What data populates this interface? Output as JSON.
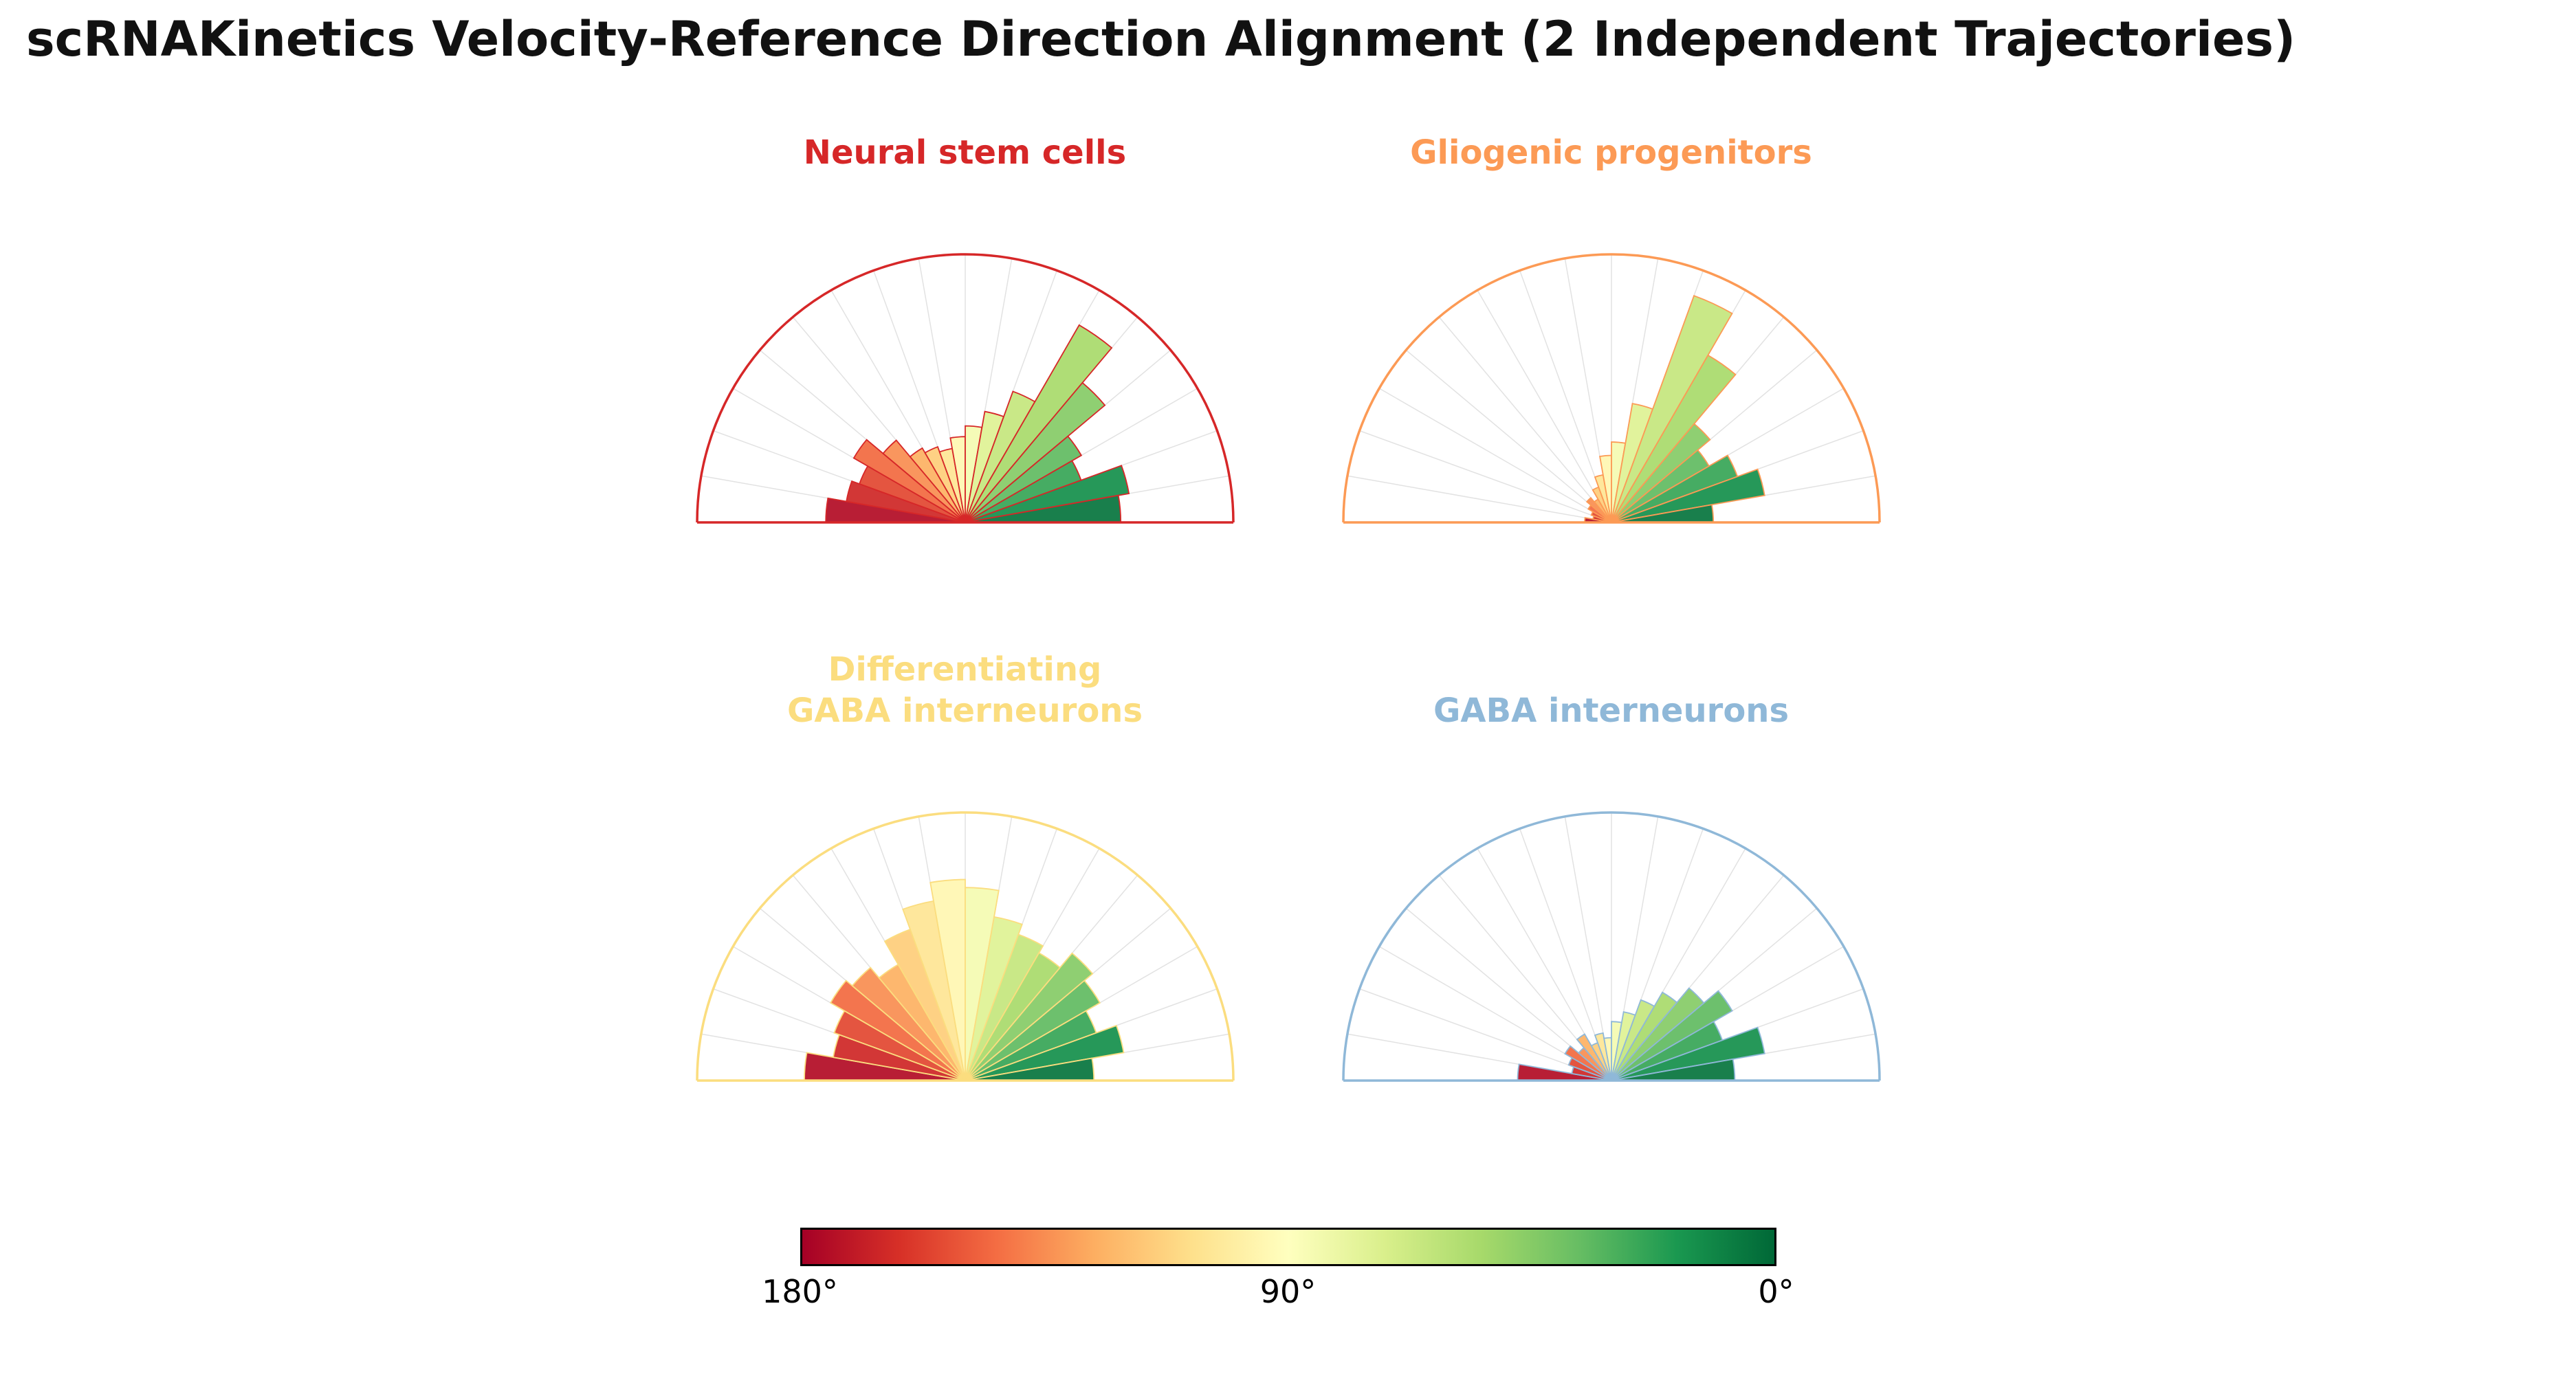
{
  "figure": {
    "title": "scRNAKinetics Velocity-Reference Direction Alignment (2 Independent Trajectories)"
  },
  "colorbar": {
    "labels": [
      "180°",
      "90°",
      "0°"
    ],
    "colormap_name": "RdYlGn",
    "colormap_stops": [
      "#a50026",
      "#d73027",
      "#f46d43",
      "#fdae61",
      "#fee08b",
      "#ffffbf",
      "#d9ef8b",
      "#a6d96a",
      "#66bd63",
      "#1a9850",
      "#006837"
    ]
  },
  "chart_data": {
    "type": "bar",
    "subtype": "polar half-rose histogram (velocity vs reference direction angle), 18 bins of 10 degrees spanning 0-180 degrees, one semicircle per cell type",
    "angle_bins_deg": {
      "start": 180,
      "end": 0,
      "bin_width": 10,
      "order": "values listed from the 170-180 degree bin (left) to the 0-10 degree bin (right)"
    },
    "radial_unit": "relative frequency (fraction of semicircle radius, estimated from pixels)",
    "color_encoding": "bin fill = RdYlGn colormap mapped by bin-center angle: 180 deg = dark red, 90 deg = pale yellow, 0 deg = dark green; bin edges and semicircle outline use the panel accent color",
    "grid": "light gray radial spokes every 10 degrees",
    "panels": [
      {
        "title": "Neural stem cells",
        "accent": "#d62728",
        "values": [
          0.52,
          0.45,
          0.42,
          0.48,
          0.4,
          0.32,
          0.3,
          0.28,
          0.32,
          0.36,
          0.42,
          0.52,
          0.85,
          0.68,
          0.5,
          0.46,
          0.62,
          0.58
        ]
      },
      {
        "title": "Gliogenic progenitors",
        "accent": "#fc9a55",
        "values": [
          0.1,
          0.07,
          0.08,
          0.1,
          0.12,
          0.1,
          0.14,
          0.18,
          0.25,
          0.3,
          0.45,
          0.9,
          0.72,
          0.48,
          0.42,
          0.5,
          0.58,
          0.38
        ]
      },
      {
        "title": "Differentiating\nGABA interneurons",
        "accent": "#fbdd7f",
        "values": [
          0.6,
          0.5,
          0.52,
          0.58,
          0.55,
          0.5,
          0.6,
          0.68,
          0.75,
          0.72,
          0.62,
          0.58,
          0.55,
          0.62,
          0.58,
          0.52,
          0.6,
          0.48
        ]
      },
      {
        "title": "GABA interneurons",
        "accent": "#8fb8d8",
        "values": [
          0.35,
          0.15,
          0.17,
          0.2,
          0.16,
          0.2,
          0.15,
          0.18,
          0.16,
          0.22,
          0.26,
          0.32,
          0.38,
          0.45,
          0.52,
          0.44,
          0.58,
          0.46
        ]
      }
    ]
  }
}
